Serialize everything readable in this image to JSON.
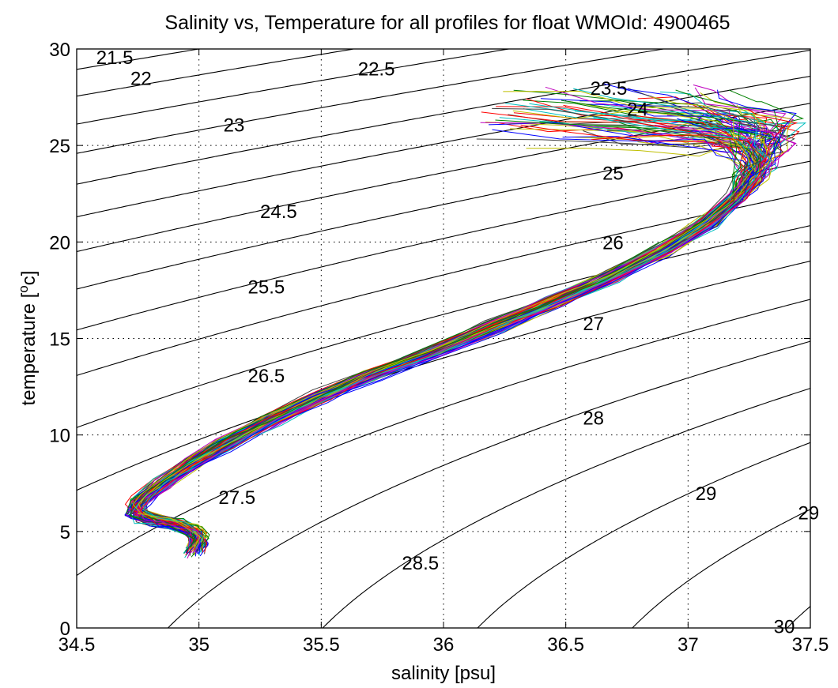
{
  "chart_data": {
    "type": "line",
    "title": "Salinity vs, Temperature for all profiles for float WMOId: 4900465",
    "xlabel": "salinity [psu]",
    "ylabel_prefix": "temperature [",
    "ylabel_super": "o",
    "ylabel_suffix": "c]",
    "xlim": [
      34.5,
      37.5
    ],
    "ylim": [
      0,
      30
    ],
    "xticks": [
      34.5,
      35,
      35.5,
      36,
      36.5,
      37,
      37.5
    ],
    "xtick_labels": [
      "34.5",
      "35",
      "35.5",
      "36",
      "36.5",
      "37",
      "37.5"
    ],
    "yticks": [
      0,
      5,
      10,
      15,
      20,
      25,
      30
    ],
    "ytick_labels": [
      "0",
      "5",
      "10",
      "15",
      "20",
      "25",
      "30"
    ],
    "grid": true,
    "density_contours": {
      "levels": [
        21.5,
        22,
        22.5,
        23,
        23.5,
        24,
        24.5,
        25,
        25.5,
        26,
        26.5,
        27,
        27.5,
        28,
        28.5,
        29,
        29.5,
        30
      ],
      "labels": [
        {
          "text": "21.5",
          "s": 34.58,
          "t": 29.6
        },
        {
          "text": "22",
          "s": 34.72,
          "t": 28.5
        },
        {
          "text": "22.5",
          "s": 35.65,
          "t": 29.0
        },
        {
          "text": "23",
          "s": 35.1,
          "t": 26.1
        },
        {
          "text": "23.5",
          "s": 36.6,
          "t": 28.0
        },
        {
          "text": "24",
          "s": 36.75,
          "t": 26.9
        },
        {
          "text": "24.5",
          "s": 35.25,
          "t": 21.6
        },
        {
          "text": "25",
          "s": 36.65,
          "t": 23.6
        },
        {
          "text": "25.5",
          "s": 35.2,
          "t": 17.7
        },
        {
          "text": "26",
          "s": 36.65,
          "t": 20.0
        },
        {
          "text": "26.5",
          "s": 35.2,
          "t": 13.1
        },
        {
          "text": "27",
          "s": 36.57,
          "t": 15.8
        },
        {
          "text": "27.5",
          "s": 35.08,
          "t": 6.8
        },
        {
          "text": "28",
          "s": 36.57,
          "t": 10.9
        },
        {
          "text": "28.5",
          "s": 35.83,
          "t": 3.4
        },
        {
          "text": "29",
          "s": 37.03,
          "t": 7.0
        },
        {
          "text": "29",
          "s": 37.45,
          "t": 6.0
        },
        {
          "text": "30",
          "s": 37.35,
          "t": 0.1
        }
      ]
    },
    "profile_colors": [
      "#0000ff",
      "#008000",
      "#ff0000",
      "#00bfbf",
      "#bf00bf",
      "#bfbf00",
      "#404040"
    ],
    "profile_count": 90,
    "mean_profile": {
      "salinity": [
        34.98,
        35.0,
        34.97,
        34.9,
        34.82,
        34.76,
        34.74,
        34.76,
        34.85,
        34.97,
        35.1,
        35.3,
        35.5,
        35.7,
        35.95,
        36.2,
        36.45,
        36.68,
        36.9,
        37.08,
        37.2,
        37.25,
        37.25,
        37.2,
        37.12,
        37.0,
        36.7,
        36.4,
        36.1
      ],
      "temperature": [
        4.0,
        4.6,
        5.1,
        5.4,
        5.6,
        5.8,
        6.1,
        6.6,
        7.5,
        8.5,
        9.5,
        10.8,
        12.0,
        13.1,
        14.3,
        15.6,
        16.9,
        18.2,
        19.6,
        21.0,
        22.3,
        23.3,
        24.1,
        24.7,
        25.2,
        25.6,
        25.9,
        26.1,
        26.3
      ]
    }
  }
}
